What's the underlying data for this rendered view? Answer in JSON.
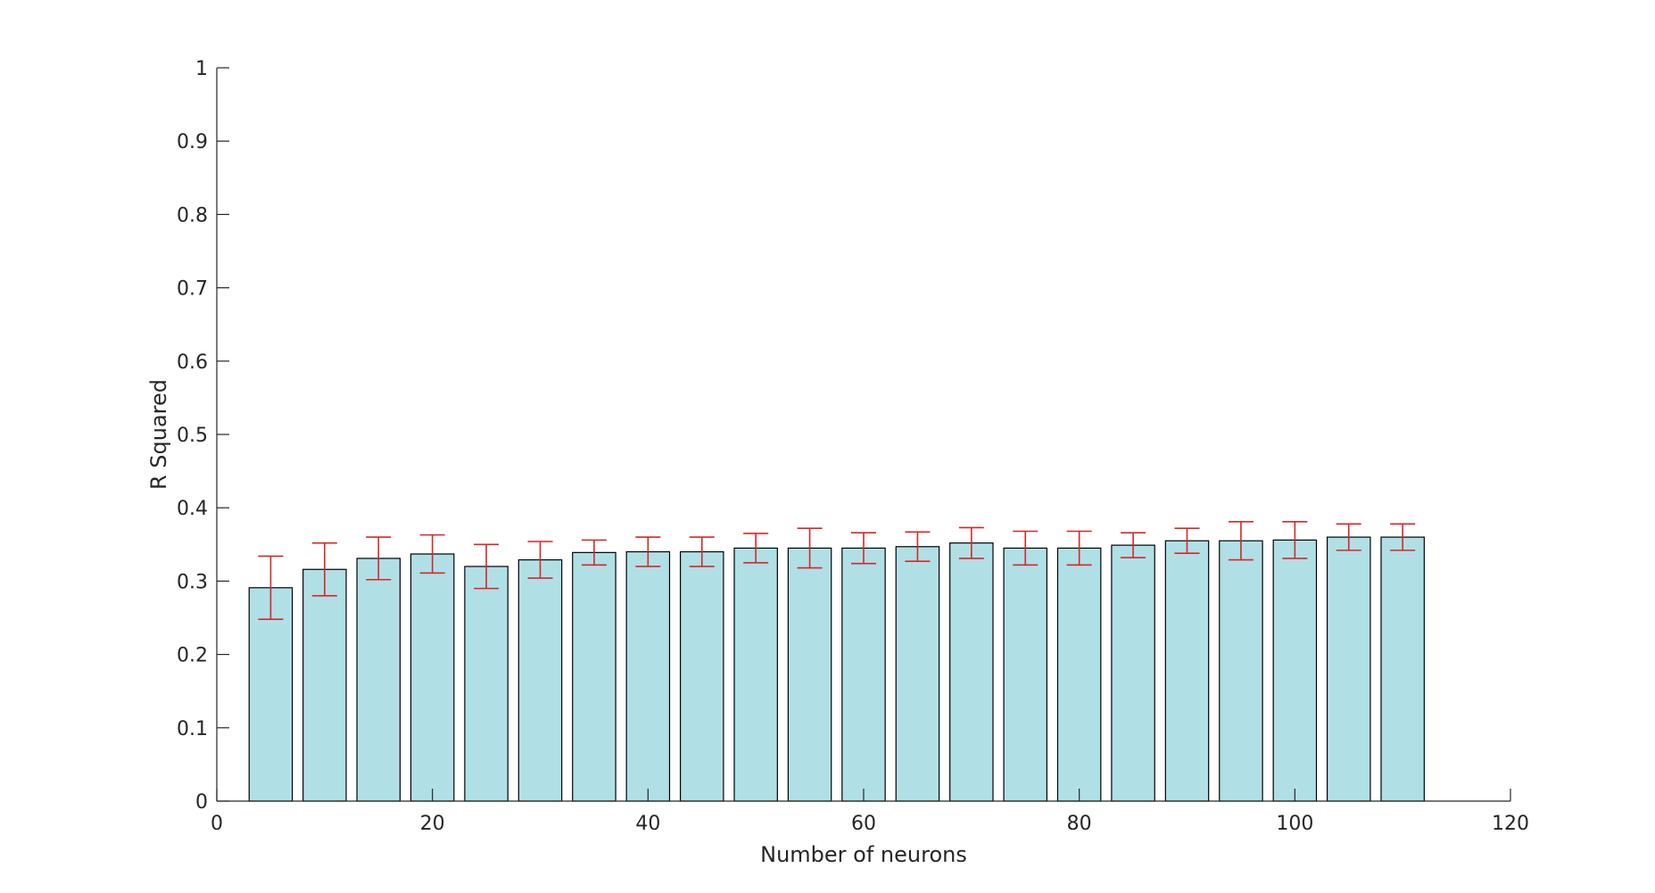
{
  "chart_data": {
    "type": "bar",
    "title": "",
    "xlabel": "Number of neurons",
    "ylabel": "R Squared",
    "xlim": [
      0,
      120
    ],
    "ylim": [
      0,
      1
    ],
    "xticks": [
      0,
      20,
      40,
      60,
      80,
      100,
      120
    ],
    "yticks": [
      0,
      0.1,
      0.2,
      0.3,
      0.4,
      0.5,
      0.6,
      0.7,
      0.8,
      0.9,
      1
    ],
    "bar_width": 4,
    "grid": false,
    "colors": {
      "bar_fill": "#b0e0e6",
      "bar_edge": "#000000",
      "error_bar": "#d62728",
      "axis": "#262626"
    },
    "x": [
      5,
      10,
      15,
      20,
      25,
      30,
      35,
      40,
      45,
      50,
      55,
      60,
      65,
      70,
      75,
      80,
      85,
      90,
      95,
      100,
      105,
      110
    ],
    "values": [
      0.291,
      0.316,
      0.331,
      0.337,
      0.32,
      0.329,
      0.339,
      0.34,
      0.34,
      0.345,
      0.345,
      0.345,
      0.347,
      0.352,
      0.345,
      0.345,
      0.349,
      0.355,
      0.355,
      0.356,
      0.36,
      0.36
    ],
    "errors": [
      0.043,
      0.036,
      0.029,
      0.026,
      0.03,
      0.025,
      0.017,
      0.02,
      0.02,
      0.02,
      0.027,
      0.021,
      0.02,
      0.021,
      0.023,
      0.023,
      0.017,
      0.017,
      0.026,
      0.025,
      0.018,
      0.018
    ]
  }
}
